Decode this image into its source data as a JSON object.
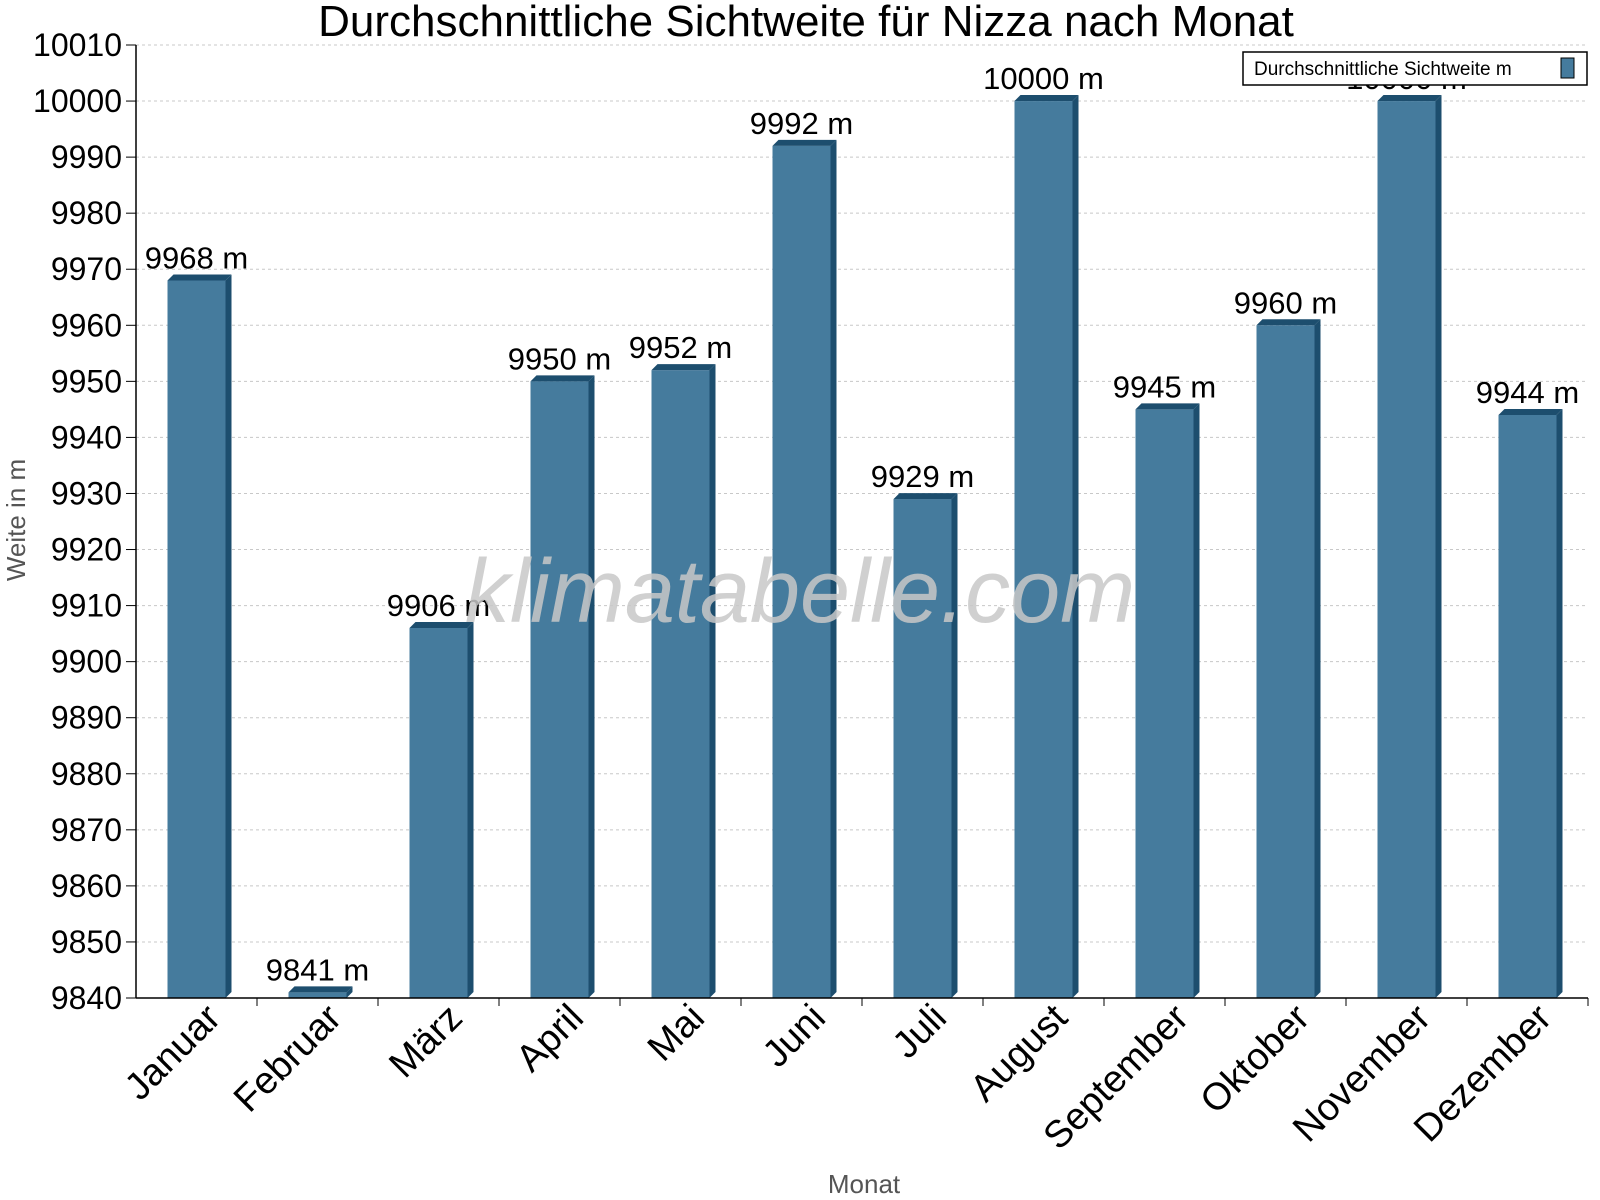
{
  "chart_data": {
    "type": "bar",
    "title": "Durchschnittliche Sichtweite für Nizza nach Monat",
    "xlabel": "Monat",
    "ylabel": "Weite in m",
    "categories": [
      "Januar",
      "Februar",
      "März",
      "April",
      "Mai",
      "Juni",
      "Juli",
      "August",
      "September",
      "Oktober",
      "November",
      "Dezember"
    ],
    "series": [
      {
        "name": "Durchschnittliche Sichtweite m",
        "values": [
          9968,
          9841,
          9906,
          9950,
          9952,
          9992,
          9929,
          10000,
          9945,
          9960,
          10000,
          9944
        ],
        "labels": [
          "9968 m",
          "9841 m",
          "9906 m",
          "9950 m",
          "9952 m",
          "9992 m",
          "9929 m",
          "10000 m",
          "9945 m",
          "9960 m",
          "10000 m",
          "9944 m"
        ]
      }
    ],
    "ylim": [
      9840,
      10010
    ],
    "yticks": [
      9840,
      9850,
      9860,
      9870,
      9880,
      9890,
      9900,
      9910,
      9920,
      9930,
      9940,
      9950,
      9960,
      9970,
      9980,
      9990,
      10000,
      10010
    ],
    "grid": true,
    "legend": "top-right",
    "colors": {
      "bar": "#457b9d",
      "bar_dark": "#1d4e6e",
      "grid": "#c8c8c8"
    }
  },
  "watermark": "klimatabelle.com"
}
